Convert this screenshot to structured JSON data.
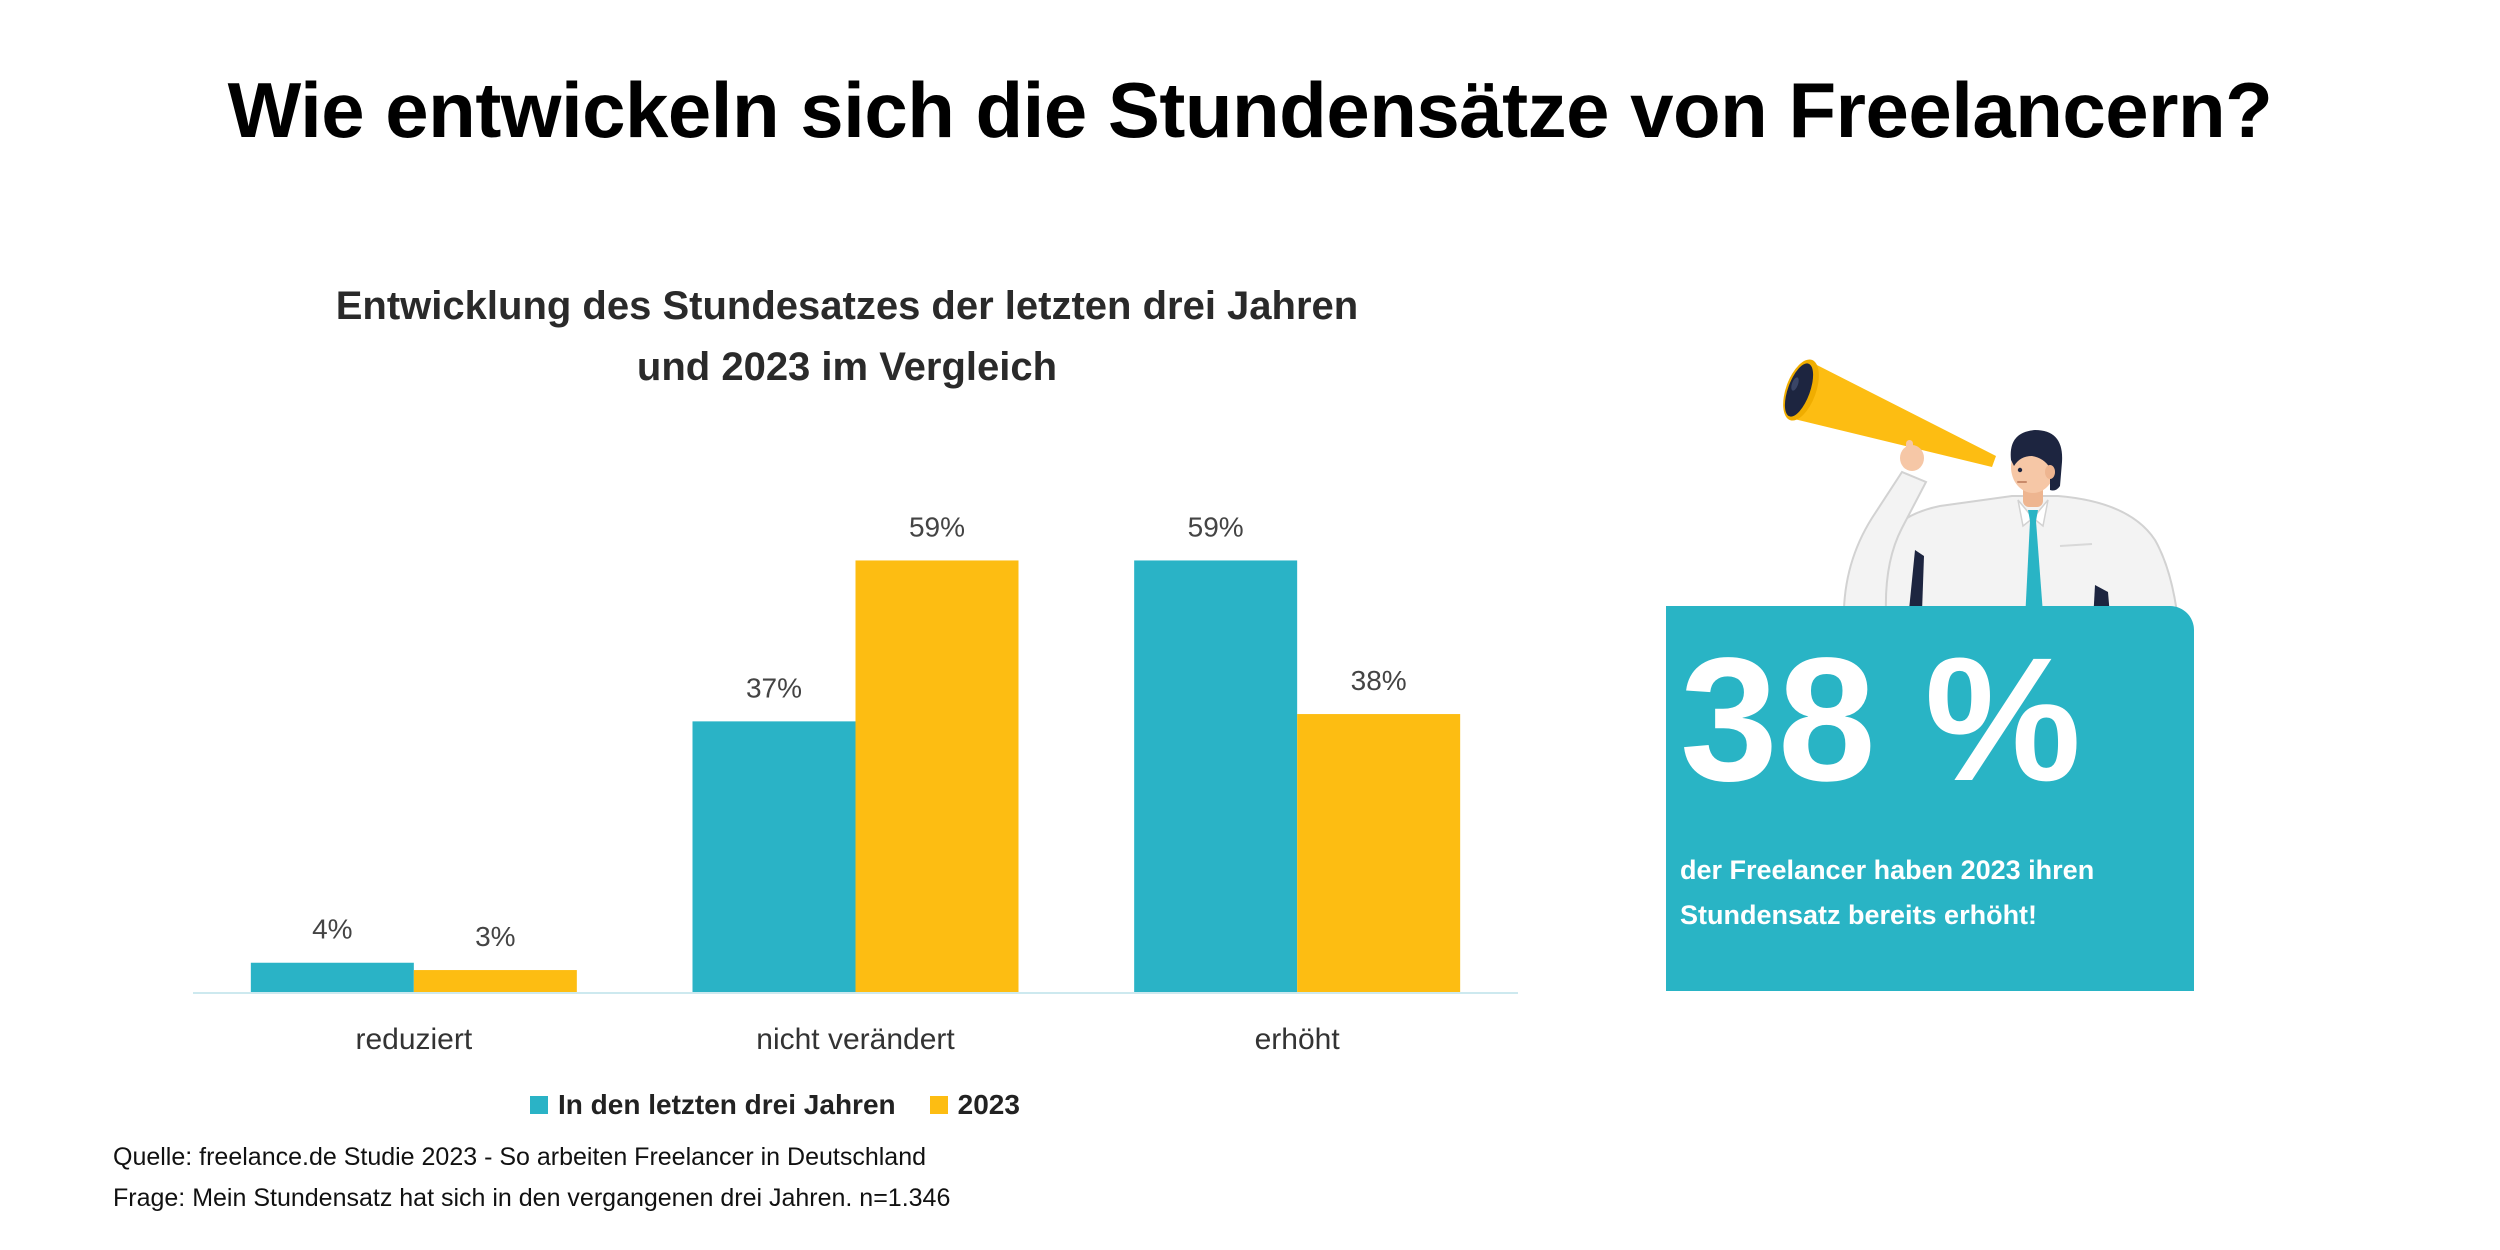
{
  "page": {
    "title": "Wie entwickeln sich die Stundensätze von Freelancern?"
  },
  "chart_data": {
    "type": "bar",
    "title_lines": [
      "Entwicklung des Stundesatzes der letzten drei Jahren",
      "und 2023 im Vergleich"
    ],
    "categories": [
      "reduziert",
      "nicht verändert",
      "erhöht"
    ],
    "series": [
      {
        "name": "In den letzten drei Jahren",
        "values": [
          4,
          37,
          59
        ],
        "labels": [
          "4%",
          "37%",
          "59%"
        ],
        "color": "#2ab3c6"
      },
      {
        "name": "2023",
        "values": [
          3,
          59,
          38
        ],
        "labels": [
          "3%",
          "59%",
          "38%"
        ],
        "color": "#fdbd12"
      }
    ],
    "ylim": [
      0,
      70
    ],
    "grid": false,
    "legend": "bottom"
  },
  "highlight": {
    "value": "38 %",
    "text_lines": [
      "der Freelancer haben 2023 ihren",
      "Stundensatz bereits erhöht!"
    ],
    "box_color": "#29b4c5"
  },
  "illustration": {
    "icon": "man-with-megaphone-icon"
  },
  "source": {
    "line1": "Quelle: freelance.de Studie 2023 - So arbeiten Freelancer in Deutschland",
    "line2": "Frage: Mein Stundensatz hat sich in den vergangenen drei Jahren. n=1.346"
  }
}
